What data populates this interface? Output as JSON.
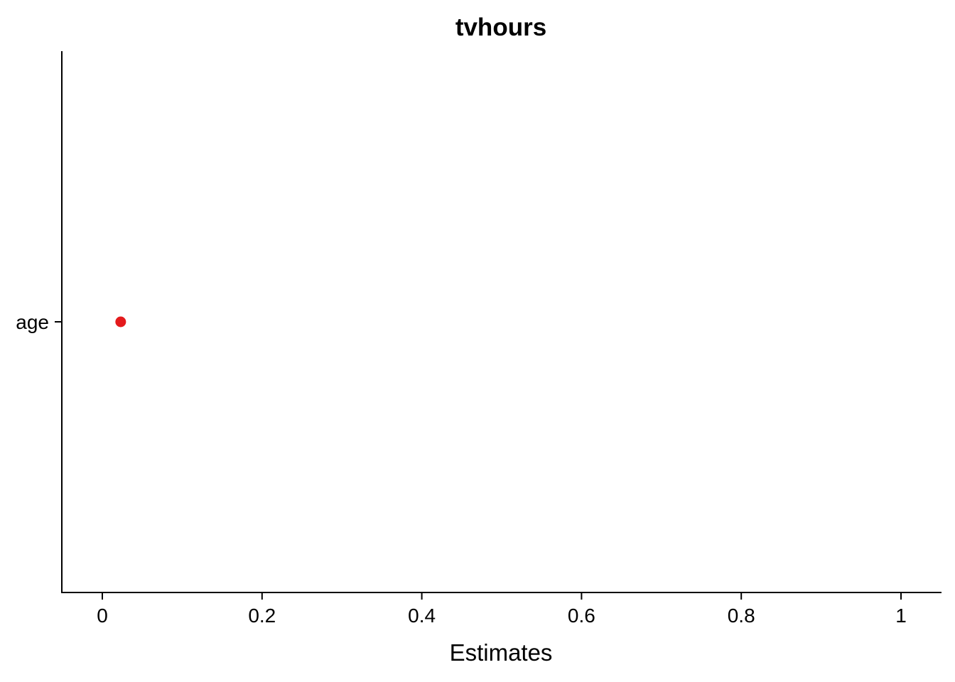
{
  "chart_data": {
    "type": "scatter",
    "title": "tvhours",
    "xlabel": "Estimates",
    "ylabel": "",
    "xlim": [
      -0.05,
      1.05
    ],
    "x_ticks": [
      0,
      0.2,
      0.4,
      0.6,
      0.8,
      1
    ],
    "x_tick_labels": [
      "0",
      "0.2",
      "0.4",
      "0.6",
      "0.8",
      "1"
    ],
    "categories": [
      "age"
    ],
    "series": [
      {
        "values": [
          0.023
        ],
        "color": "#e41a1c"
      }
    ],
    "grid": false,
    "legend": "none"
  }
}
